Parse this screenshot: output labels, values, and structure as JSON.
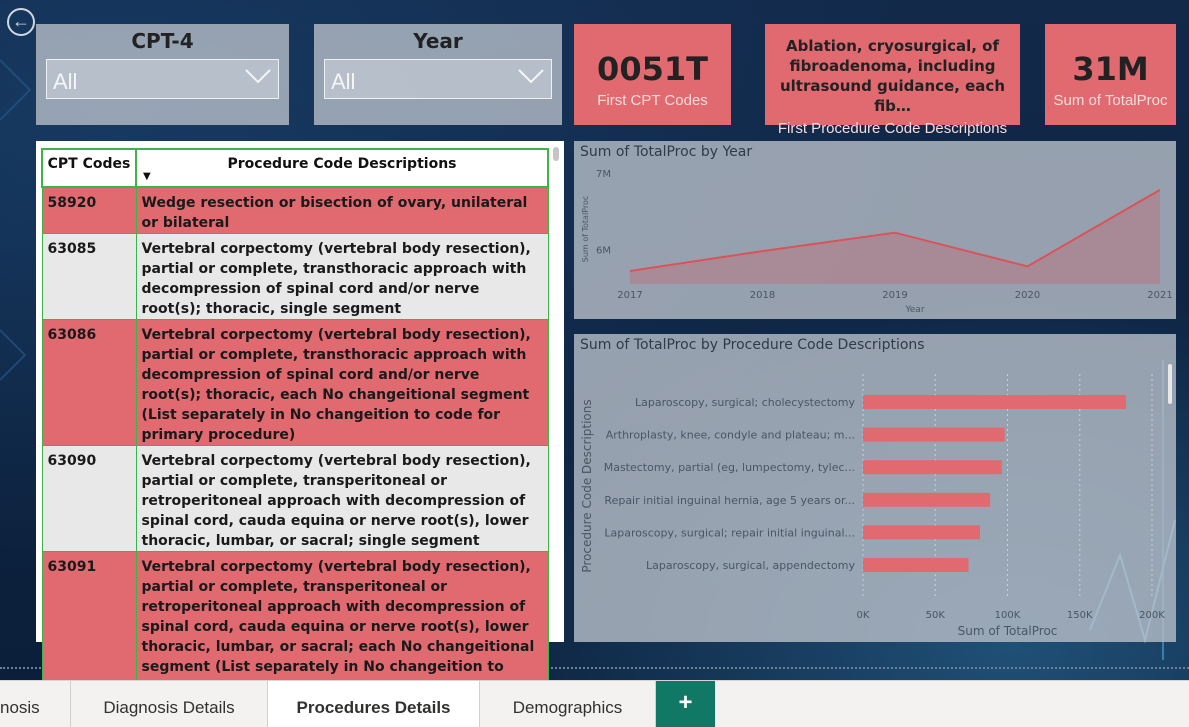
{
  "nav": {
    "back_icon": "back-arrow-icon"
  },
  "slicers": [
    {
      "title": "CPT-4",
      "value": "All"
    },
    {
      "title": "Year",
      "value": "All"
    }
  ],
  "cards": {
    "first_cpt": {
      "value": "0051T",
      "label": "First CPT Codes"
    },
    "first_desc": {
      "value": "Ablation, cryosurgical, of fibroadenoma, including ultrasound guidance, each fib…",
      "label": "First Procedure Code Descriptions"
    },
    "sum_total": {
      "value": "31M",
      "label": "Sum of  TotalProc"
    }
  },
  "table": {
    "headers": [
      "CPT Codes",
      "Procedure Code Descriptions"
    ],
    "rows": [
      {
        "code": "58920",
        "desc": "Wedge resection or bisection of ovary, unilateral or bilateral"
      },
      {
        "code": "63085",
        "desc": "Vertebral corpectomy (vertebral body resection), partial or complete, transthoracic approach with decompression of spinal cord and/or nerve root(s); thoracic, single segment"
      },
      {
        "code": "63086",
        "desc": "Vertebral corpectomy (vertebral body resection), partial or complete, transthoracic approach with decompression of spinal cord and/or nerve root(s); thoracic, each No changeitional segment (List separately in No changeition to code for primary procedure)"
      },
      {
        "code": "63090",
        "desc": "Vertebral corpectomy (vertebral body resection), partial or complete, transperitoneal or retroperitoneal approach with decompression of spinal cord, cauda equina or nerve root(s), lower thoracic, lumbar, or sacral; single segment"
      },
      {
        "code": "63091",
        "desc": "Vertebral corpectomy (vertebral body resection), partial or complete, transperitoneal or retroperitoneal approach with decompression of spinal cord, cauda equina or nerve root(s), lower thoracic, lumbar, or sacral; each No changeitional segment (List separately in No changeition to code for primary procedure)"
      }
    ]
  },
  "chart_data": [
    {
      "type": "area",
      "title": "Sum of TotalProc by Year",
      "xlabel": "Year",
      "ylabel": "Sum of TotalProc",
      "x": [
        2017,
        2018,
        2019,
        2020,
        2021
      ],
      "x_tick_labels": [
        "2017",
        "2018",
        "2019",
        "2020",
        "2021"
      ],
      "values": [
        5.72,
        5.98,
        6.22,
        5.78,
        6.78
      ],
      "unit": "M",
      "yticks": [
        "7M",
        "6M"
      ],
      "ylim": [
        5.55,
        7.0
      ],
      "color": "#d9545a",
      "grid": false
    },
    {
      "type": "bar",
      "orientation": "horizontal",
      "title": "Sum of TotalProc by Procedure Code Descriptions",
      "xlabel": "Sum of TotalProc",
      "ylabel": "Procedure Code Descriptions",
      "categories": [
        "Laparoscopy, surgical; cholecystectomy",
        "Arthroplasty, knee, condyle and plateau; m...",
        "Mastectomy, partial (eg, lumpectomy, tylec...",
        "Repair initial inguinal hernia, age 5 years or...",
        "Laparoscopy, surgical; repair initial inguinal...",
        "Laparoscopy, surgical, appendectomy"
      ],
      "values": [
        182000,
        98000,
        96000,
        88000,
        81000,
        73000
      ],
      "xticks": [
        "0K",
        "50K",
        "100K",
        "150K",
        "200K"
      ],
      "xlim": [
        0,
        200000
      ],
      "color": "#e06a70",
      "grid": true
    }
  ],
  "tabs": [
    {
      "label": "nosis",
      "active": false
    },
    {
      "label": "Diagnosis Details",
      "active": false
    },
    {
      "label": "Procedures Details",
      "active": true
    },
    {
      "label": "Demographics",
      "active": false
    }
  ],
  "tab_add": "+"
}
